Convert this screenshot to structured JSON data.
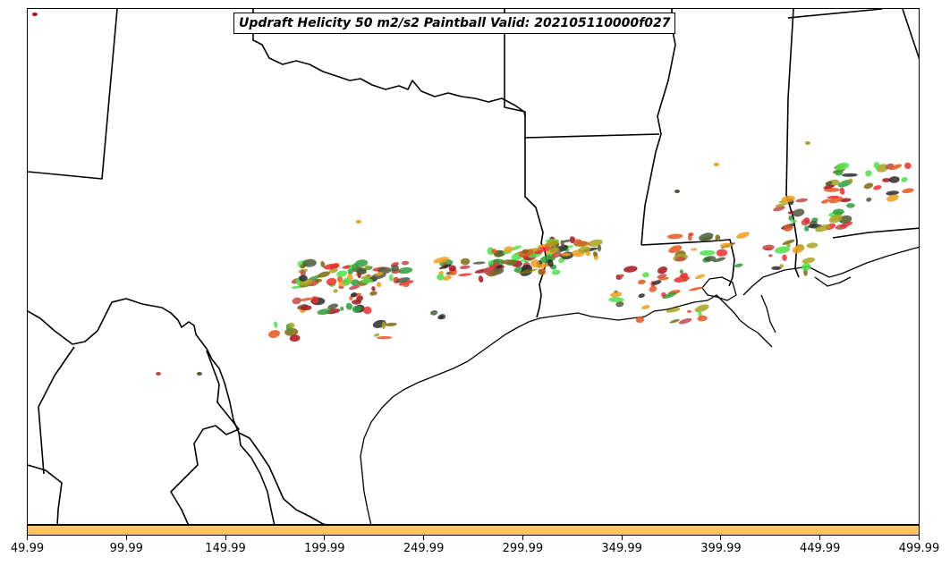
{
  "title": "Updraft Helicity 50 m2/s2 Paintball Valid: 202105110000f027",
  "colorbar": {
    "color": "#ffc266",
    "ticks": [
      "49.99",
      "99.99",
      "149.99",
      "199.99",
      "249.99",
      "299.99",
      "349.99",
      "399.99",
      "449.99",
      "499.99"
    ]
  },
  "colors": {
    "member_palette": [
      "#2e9e3a",
      "#4de04a",
      "#f29c1c",
      "#e8561c",
      "#ee2d2d",
      "#a8a21f",
      "#7a6a12",
      "#a8121b",
      "#4a5a3a",
      "#2a2a2a",
      "#c24a4a"
    ]
  }
}
